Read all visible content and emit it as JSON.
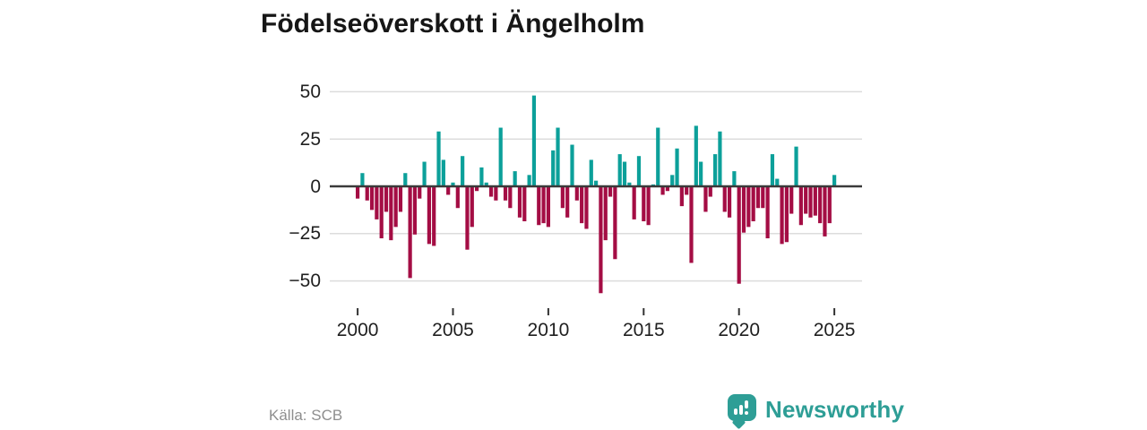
{
  "title": "Födelseöverskott i Ängelholm",
  "source": "Källa: SCB",
  "brand": {
    "name": "Newsworthy",
    "color": "#2E9E96",
    "icon": "bar-chart-speech-bubble-icon"
  },
  "colors": {
    "positive": "#0CA09A",
    "negative": "#A40D44",
    "gridline": "#dcdcdc",
    "zero_line": "#3a3a3a",
    "title_text": "#161616",
    "axis_text": "#1f1f1f",
    "source_text": "#8e8e8e"
  },
  "chart_data": {
    "type": "bar",
    "title": "Födelseöverskott i Ängelholm",
    "frequency": "quarterly",
    "start_period": "2000 Q1",
    "end_period": "2025 Q1",
    "values": [
      -6,
      7,
      -7,
      -12,
      -17,
      -27,
      -13,
      -28,
      -21,
      -13,
      7,
      -48,
      -25,
      -6,
      13,
      -30,
      -31,
      29,
      14,
      -4,
      2,
      -11,
      16,
      -33,
      -21,
      -2,
      10,
      2,
      -5,
      -7,
      31,
      -7,
      -11,
      8,
      -16,
      -18,
      6,
      48,
      -20,
      -19,
      -21,
      19,
      31,
      -11,
      -16,
      22,
      -7,
      -19,
      -22,
      14,
      3,
      -56,
      -28,
      -5,
      -38,
      17,
      13,
      2,
      -17,
      16,
      -18,
      -20,
      1,
      31,
      -4,
      -2,
      6,
      20,
      -10,
      -4,
      -40,
      32,
      13,
      -13,
      -5,
      17,
      29,
      -13,
      -16,
      8,
      -51,
      -24,
      -21,
      -18,
      -11,
      -11,
      -27,
      17,
      4,
      -30,
      -29,
      -14,
      21,
      -20,
      -14,
      -16,
      -15,
      -19,
      -26,
      -19,
      6
    ],
    "xticks": [
      2000,
      2005,
      2010,
      2015,
      2020,
      2025
    ],
    "yticks": [
      50,
      25,
      0,
      -25,
      -50
    ],
    "ylim": [
      -60,
      55
    ],
    "grid": true,
    "legend": false
  }
}
